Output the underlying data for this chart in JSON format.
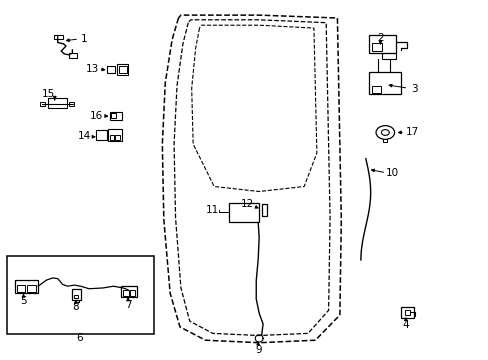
{
  "bg_color": "#ffffff",
  "line_color": "#000000",
  "fig_width": 4.89,
  "fig_height": 3.6,
  "dpi": 100,
  "door_outer": {
    "x": [
      0.37,
      0.358,
      0.342,
      0.338,
      0.34,
      0.355,
      0.375,
      0.43,
      0.53,
      0.64,
      0.69,
      0.695,
      0.685,
      0.53,
      0.375,
      0.37
    ],
    "y": [
      0.945,
      0.88,
      0.76,
      0.6,
      0.4,
      0.2,
      0.1,
      0.058,
      0.052,
      0.058,
      0.12,
      0.4,
      0.945,
      0.955,
      0.955,
      0.945
    ]
  },
  "door_mid": {
    "x": [
      0.392,
      0.382,
      0.368,
      0.364,
      0.366,
      0.378,
      0.398,
      0.445,
      0.53,
      0.625,
      0.668,
      0.672,
      0.662,
      0.53,
      0.397,
      0.392
    ],
    "y": [
      0.93,
      0.87,
      0.755,
      0.6,
      0.405,
      0.215,
      0.118,
      0.082,
      0.076,
      0.082,
      0.14,
      0.405,
      0.93,
      0.94,
      0.94,
      0.93
    ]
  },
  "window_inner": {
    "x": [
      0.412,
      0.404,
      0.395,
      0.4,
      0.445,
      0.53,
      0.62,
      0.648,
      0.643,
      0.53,
      0.415,
      0.412
    ],
    "y": [
      0.915,
      0.855,
      0.75,
      0.6,
      0.48,
      0.465,
      0.48,
      0.57,
      0.915,
      0.925,
      0.925,
      0.915
    ]
  }
}
